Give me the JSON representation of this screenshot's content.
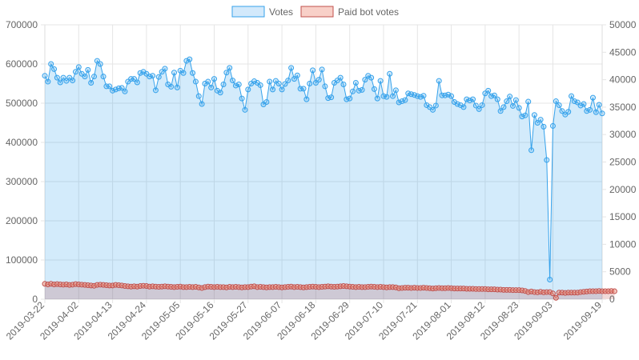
{
  "chart_data": {
    "type": "line",
    "legend": {
      "placement": "top-center",
      "entries": [
        {
          "label": "Votes",
          "color": "#36a2eb",
          "fill": "#d3e9fb"
        },
        {
          "label": "Paid bot votes",
          "color": "#c0504d",
          "fill": "#f8d0c8"
        }
      ]
    },
    "x_tick_labels": [
      "2019-03-22",
      "2019-04-02",
      "2019-04-13",
      "2019-04-24",
      "2019-05-05",
      "2019-05-16",
      "2019-05-27",
      "2019-06-07",
      "2019-06-18",
      "2019-06-29",
      "2019-07-10",
      "2019-07-21",
      "2019-08-01",
      "2019-08-12",
      "2019-08-23",
      "2019-09-03",
      "2019-09-19"
    ],
    "x_range": [
      "2019-03-22",
      "2019-09-19"
    ],
    "y_left": {
      "min": 0,
      "max": 700000,
      "step": 100000,
      "tick_labels": [
        "0",
        "100000",
        "200000",
        "300000",
        "400000",
        "500000",
        "600000",
        "700000"
      ]
    },
    "y_right": {
      "min": 0,
      "max": 50000,
      "step": 5000,
      "tick_labels": [
        "0",
        "5000",
        "10000",
        "15000",
        "20000",
        "25000",
        "30000",
        "35000",
        "40000",
        "45000",
        "50000"
      ]
    },
    "grid": true,
    "series": [
      {
        "name": "Votes",
        "axis": "left",
        "start_date": "2019-03-22",
        "values": [
          570000,
          555000,
          600000,
          587000,
          565000,
          553000,
          565000,
          557000,
          565000,
          558000,
          580000,
          592000,
          575000,
          568000,
          585000,
          552000,
          568000,
          608000,
          600000,
          568000,
          543000,
          543000,
          532000,
          535000,
          538000,
          539000,
          530000,
          555000,
          562000,
          562000,
          553000,
          577000,
          580000,
          575000,
          568000,
          570000,
          533000,
          567000,
          580000,
          588000,
          548000,
          542000,
          578000,
          540000,
          583000,
          577000,
          608000,
          612000,
          577000,
          555000,
          518000,
          498000,
          550000,
          555000,
          540000,
          562000,
          532000,
          527000,
          548000,
          578000,
          590000,
          558000,
          545000,
          548000,
          512000,
          483000,
          535000,
          550000,
          556000,
          552000,
          546000,
          497000,
          503000,
          555000,
          535000,
          557000,
          550000,
          535000,
          549000,
          558000,
          590000,
          562000,
          571000,
          537000,
          537000,
          510000,
          550000,
          584000,
          552000,
          560000,
          586000,
          543000,
          513000,
          515000,
          552000,
          558000,
          565000,
          548000,
          510000,
          512000,
          530000,
          552000,
          532000,
          534000,
          560000,
          570000,
          565000,
          536000,
          512000,
          557000,
          518000,
          516000,
          575000,
          518000,
          533000,
          502000,
          505000,
          508000,
          525000,
          523000,
          521000,
          518000,
          516000,
          519000,
          495000,
          490000,
          483000,
          494000,
          557000,
          520000,
          520000,
          522000,
          518000,
          503000,
          498000,
          495000,
          490000,
          510000,
          507000,
          510000,
          494000,
          485000,
          495000,
          525000,
          532000,
          518000,
          520000,
          510000,
          480000,
          490000,
          505000,
          517000,
          493000,
          508000,
          488000,
          466000,
          469000,
          504000,
          380000,
          470000,
          450000,
          458000,
          440000,
          355000,
          50000,
          442000,
          505000,
          495000,
          480000,
          471000,
          478000,
          518000,
          505000,
          502000,
          494000,
          498000,
          480000,
          483000,
          514000,
          477000,
          496000,
          474000
        ]
      },
      {
        "name": "Paid bot votes",
        "axis": "right",
        "start_date": "2019-03-22",
        "values": [
          2800,
          2700,
          2800,
          2700,
          2750,
          2700,
          2650,
          2700,
          2600,
          2650,
          2750,
          2700,
          2650,
          2600,
          2550,
          2500,
          2450,
          2600,
          2650,
          2600,
          2550,
          2500,
          2500,
          2600,
          2550,
          2500,
          2400,
          2350,
          2300,
          2350,
          2300,
          2400,
          2450,
          2400,
          2300,
          2350,
          2300,
          2250,
          2300,
          2350,
          2300,
          2250,
          2200,
          2250,
          2300,
          2200,
          2200,
          2250,
          2200,
          2250,
          2150,
          2050,
          2200,
          2300,
          2250,
          2200,
          2250,
          2200,
          2200,
          2150,
          2250,
          2200,
          2250,
          2200,
          2150,
          2200,
          2200,
          2300,
          2350,
          2200,
          2250,
          2200,
          2150,
          2200,
          2200,
          2250,
          2200,
          2150,
          2200,
          2250,
          2300,
          2200,
          2250,
          2200,
          2150,
          2200,
          2250,
          2300,
          2250,
          2200,
          2250,
          2300,
          2350,
          2300,
          2250,
          2300,
          2350,
          2400,
          2350,
          2300,
          2250,
          2200,
          2250,
          2200,
          2200,
          2250,
          2300,
          2250,
          2200,
          2250,
          2200,
          2150,
          2200,
          2200,
          2150,
          2000,
          2050,
          2100,
          2100,
          2050,
          2100,
          2050,
          2050,
          2100,
          2050,
          2000,
          1950,
          2000,
          2050,
          2000,
          2000,
          2050,
          2000,
          1950,
          1950,
          1950,
          1950,
          1900,
          1900,
          1900,
          1850,
          1850,
          1850,
          1850,
          1800,
          1800,
          1800,
          1750,
          1750,
          1700,
          1700,
          1700,
          1650,
          1650,
          1650,
          1600,
          1500,
          1300,
          1400,
          1300,
          1250,
          1350,
          1250,
          1300,
          1300,
          1050,
          250,
          1200,
          1200,
          1150,
          1200,
          1200,
          1200,
          1200,
          1300,
          1350,
          1400,
          1450,
          1450,
          1450,
          1500,
          1450,
          1450,
          1450,
          1500,
          1450
        ]
      }
    ]
  }
}
